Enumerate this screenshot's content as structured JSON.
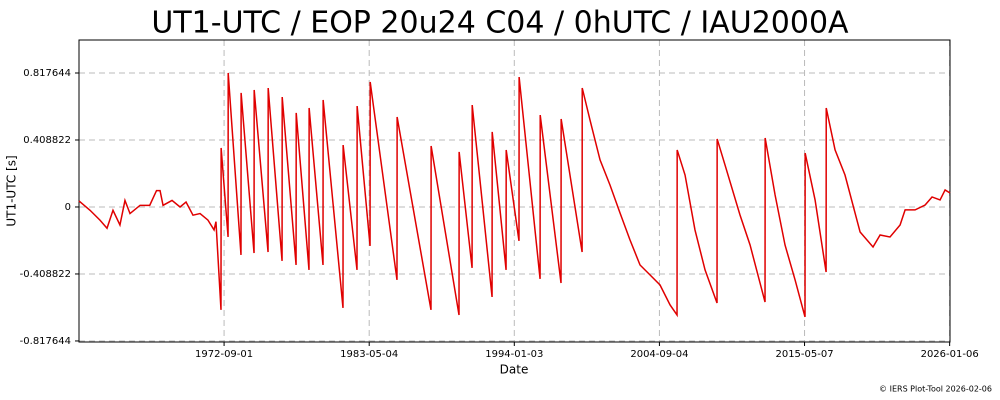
{
  "chart_data": {
    "type": "line",
    "title": "UT1-UTC / EOP 20u24 C04 / 0hUTC / IAU2000A",
    "x_label": "Date",
    "y_label": "UT1-UTC [s]",
    "color": "#e00000",
    "x": [
      1962.0,
      1962.81,
      1963.54,
      1964.06,
      1964.5,
      1965.01,
      1965.38,
      1965.75,
      1966.49,
      1967.2,
      1967.7,
      1967.96,
      1968.18,
      1968.84,
      1969.43,
      1969.87,
      1970.38,
      1970.9,
      1971.48,
      1971.93,
      1972.07,
      1972.44,
      1972.45,
      1972.96,
      1972.97,
      1973.91,
      1973.92,
      1974.87,
      1974.88,
      1975.9,
      1975.91,
      1976.93,
      1976.94,
      1977.96,
      1977.97,
      1978.91,
      1978.92,
      1979.94,
      1979.95,
      1981.41,
      1981.42,
      1982.44,
      1982.45,
      1983.4,
      1983.41,
      1985.38,
      1985.39,
      1987.88,
      1987.89,
      1989.94,
      1989.95,
      1990.9,
      1990.91,
      1992.37,
      1992.38,
      1993.4,
      1993.41,
      1994.35,
      1994.36,
      1995.9,
      1995.91,
      1997.44,
      1997.45,
      1998.99,
      1999.0,
      1999.57,
      2000.31,
      2001.04,
      2001.78,
      2002.51,
      2003.25,
      2003.99,
      2004.72,
      2005.46,
      2005.97,
      2005.98,
      2006.56,
      2007.29,
      2008.03,
      2008.91,
      2008.92,
      2009.5,
      2010.6,
      2011.34,
      2012.44,
      2012.45,
      2013.18,
      2013.91,
      2014.65,
      2015.38,
      2015.39,
      2016.12,
      2016.93,
      2016.94,
      2017.59,
      2018.32,
      2019.43,
      2020.38,
      2020.9,
      2021.63,
      2022.37,
      2022.74,
      2023.47,
      2024.21,
      2024.72,
      2025.31,
      2025.68,
      2026.04
    ],
    "values": [
      0.037,
      -0.02,
      -0.08,
      -0.13,
      -0.02,
      -0.11,
      0.04,
      -0.04,
      0.01,
      0.01,
      0.1,
      0.1,
      0.01,
      0.04,
      0,
      0.03,
      -0.05,
      -0.04,
      -0.08,
      -0.14,
      -0.09,
      -0.628,
      0.36,
      -0.183,
      0.818,
      -0.293,
      0.696,
      -0.281,
      0.714,
      -0.275,
      0.726,
      -0.329,
      0.671,
      -0.354,
      0.574,
      -0.384,
      0.604,
      -0.354,
      0.653,
      -0.616,
      0.378,
      -0.384,
      0.616,
      -0.238,
      0.763,
      -0.445,
      0.549,
      -0.628,
      0.372,
      -0.659,
      0.336,
      -0.372,
      0.622,
      -0.549,
      0.458,
      -0.384,
      0.348,
      -0.207,
      0.793,
      -0.439,
      0.561,
      -0.464,
      0.537,
      -0.275,
      0.726,
      0.531,
      0.287,
      0.134,
      -0.037,
      -0.201,
      -0.354,
      -0.415,
      -0.476,
      -0.598,
      -0.659,
      0.348,
      0.195,
      -0.14,
      -0.384,
      -0.586,
      0.415,
      0.256,
      -0.049,
      -0.232,
      -0.58,
      0.421,
      0.073,
      -0.232,
      -0.445,
      -0.671,
      0.329,
      0.043,
      -0.397,
      0.604,
      0.348,
      0.195,
      -0.153,
      -0.244,
      -0.171,
      -0.183,
      -0.11,
      -0.018,
      -0.018,
      0.012,
      0.061,
      0.043,
      0.104,
      0.085
    ],
    "xlim": [
      1962.0,
      2026.04
    ],
    "xticks": [
      {
        "value": 1972.667,
        "label": "1972-09-01"
      },
      {
        "value": 1983.337,
        "label": "1983-05-04"
      },
      {
        "value": 1994.005,
        "label": "1994-01-03"
      },
      {
        "value": 2004.675,
        "label": "2004-09-04"
      },
      {
        "value": 2015.345,
        "label": "2015-05-07"
      },
      {
        "value": 2026.014,
        "label": "2026-01-06"
      }
    ],
    "ylim": [
      -0.824,
      1.019
    ],
    "yticks": [
      -0.817644,
      -0.408822,
      0,
      0.408822,
      0.817644
    ],
    "grid": true
  },
  "footer": "© IERS Plot-Tool 2026-02-06"
}
